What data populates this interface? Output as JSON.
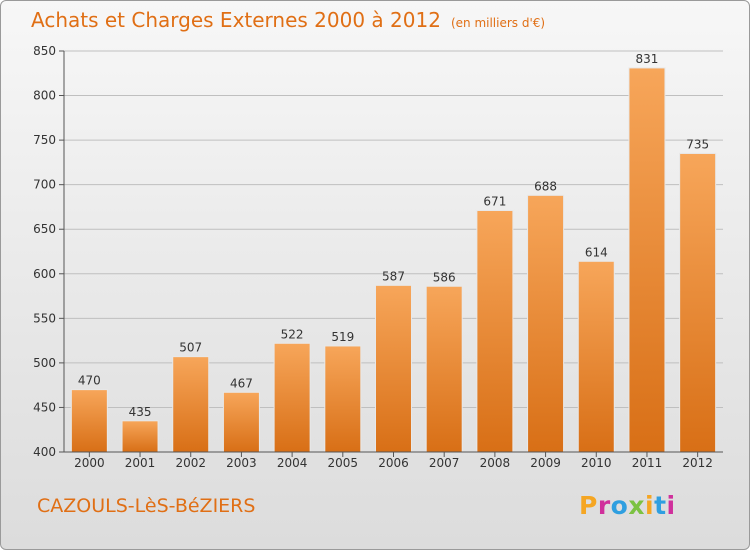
{
  "header": {
    "title": "Achats et Charges Externes 2000 à 2012",
    "unit": "(en milliers d'€)"
  },
  "footer": {
    "place": "CAZOULS-LèS-BéZIERS",
    "logo_text": "Proxiti",
    "logo_colors": [
      "#f5a623",
      "#d0309c",
      "#2f9fe0",
      "#7cc242",
      "#f5a623",
      "#2f9fe0",
      "#d0309c"
    ]
  },
  "chart_data": {
    "type": "bar",
    "title": "Achats et Charges Externes 2000 à 2012",
    "subtitle": "(en milliers d'€)",
    "categories": [
      "2000",
      "2001",
      "2002",
      "2003",
      "2004",
      "2005",
      "2006",
      "2007",
      "2008",
      "2009",
      "2010",
      "2011",
      "2012"
    ],
    "values": [
      470,
      435,
      507,
      467,
      522,
      519,
      587,
      586,
      671,
      688,
      614,
      831,
      735
    ],
    "ylim": [
      400,
      850
    ],
    "yticks": [
      400,
      450,
      500,
      550,
      600,
      650,
      700,
      750,
      800,
      850
    ],
    "grid": true,
    "colors": {
      "bar_top": "#f7a65a",
      "bar_bottom": "#d86f16",
      "grid": "#bfbfbf",
      "axis_text": "#333333"
    }
  }
}
